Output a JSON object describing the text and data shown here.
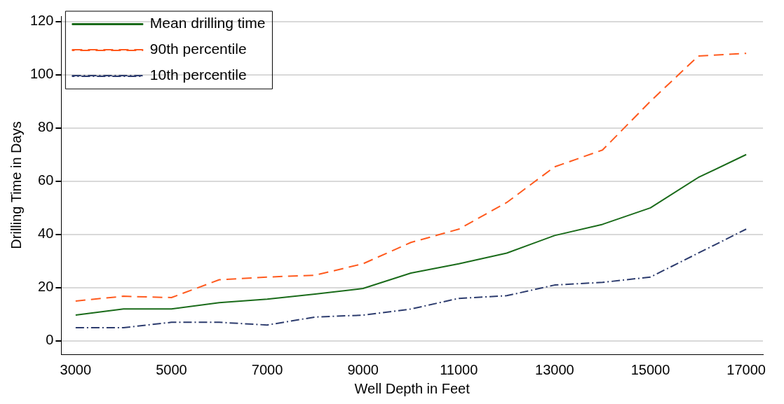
{
  "chart_data": {
    "type": "line",
    "xlabel": "Well Depth in Feet",
    "ylabel": "Drilling Time in Days",
    "x": [
      3000,
      4000,
      5000,
      6000,
      7000,
      8000,
      9000,
      10000,
      11000,
      12000,
      13000,
      14000,
      15000,
      16000,
      17000
    ],
    "series": [
      {
        "name": "Mean drilling time",
        "color": "#1a6b1a",
        "line_style": "solid",
        "values": [
          9.7,
          12,
          12,
          14.4,
          15.7,
          17.6,
          19.7,
          25.5,
          29,
          33,
          39.6,
          43.8,
          50,
          61.4,
          70
        ]
      },
      {
        "name": "90th percentile",
        "color": "#ff5a1e",
        "line_style": "dashed",
        "values": [
          15,
          16.8,
          16.3,
          23,
          24,
          24.7,
          29,
          37,
          42,
          52,
          65.4,
          71.7,
          90,
          107,
          108
        ]
      },
      {
        "name": "10th percentile",
        "color": "#2d3c6e",
        "line_style": "dashdot",
        "values": [
          5,
          5,
          7,
          7,
          6,
          9,
          9.7,
          12,
          16,
          17,
          21,
          22,
          24,
          33,
          42
        ]
      }
    ],
    "xlim": [
      2700,
      17350
    ],
    "xticks": [
      3000,
      5000,
      7000,
      9000,
      11000,
      13000,
      15000,
      17000
    ],
    "ylim": [
      -5,
      122
    ],
    "yticks": [
      0,
      20,
      40,
      60,
      80,
      100,
      120
    ],
    "grid": "y",
    "legend": "top left",
    "marker": "none"
  }
}
